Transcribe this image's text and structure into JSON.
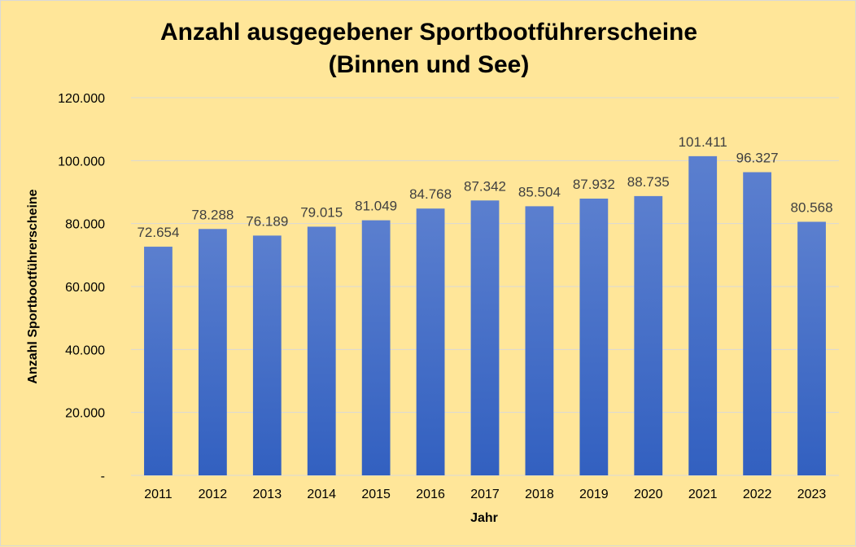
{
  "chart_data": {
    "type": "bar",
    "title_line1": "Anzahl ausgegebener Sportbootführerscheine",
    "title_line2": "(Binnen und  See)",
    "xlabel": "Jahr",
    "ylabel": "Anzahl Sportbootführerscheine",
    "categories": [
      "2011",
      "2012",
      "2013",
      "2014",
      "2015",
      "2016",
      "2017",
      "2018",
      "2019",
      "2020",
      "2021",
      "2022",
      "2023"
    ],
    "values": [
      72654,
      78288,
      76189,
      79015,
      81049,
      84768,
      87342,
      85504,
      87932,
      88735,
      101411,
      96327,
      80568
    ],
    "value_labels": [
      "72.654",
      "78.288",
      "76.189",
      "79.015",
      "81.049",
      "84.768",
      "87.342",
      "85.504",
      "87.932",
      "88.735",
      "101.411",
      "96.327",
      "80.568"
    ],
    "ylim": [
      0,
      120000
    ],
    "y_ticks": [
      0,
      20000,
      40000,
      60000,
      80000,
      100000,
      120000
    ],
    "y_tick_labels": [
      "-",
      "20.000",
      "40.000",
      "60.000",
      "80.000",
      "100.000",
      "120.000"
    ],
    "grid": true,
    "legend": "none",
    "bar_color_top": "#5b7fcf",
    "bar_color_bottom": "#3260c0",
    "background": "#ffe699"
  }
}
